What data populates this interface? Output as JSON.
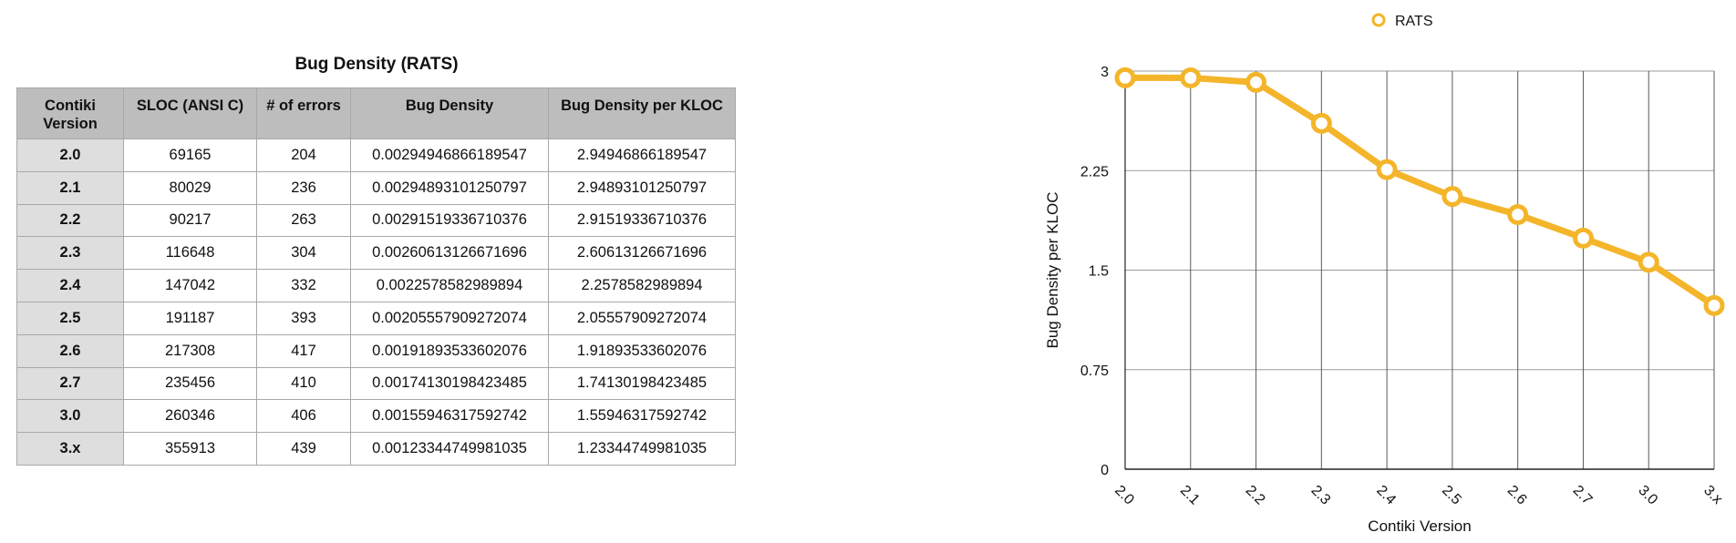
{
  "table": {
    "title": "Bug Density (RATS)",
    "columns": [
      "Contiki Version",
      "SLOC (ANSI C)",
      "# of errors",
      "Bug Density",
      "Bug Density per KLOC"
    ],
    "rows": [
      [
        "2.0",
        "69165",
        "204",
        "0.00294946866189547",
        "2.94946866189547"
      ],
      [
        "2.1",
        "80029",
        "236",
        "0.00294893101250797",
        "2.94893101250797"
      ],
      [
        "2.2",
        "90217",
        "263",
        "0.00291519336710376",
        "2.91519336710376"
      ],
      [
        "2.3",
        "116648",
        "304",
        "0.00260613126671696",
        "2.60613126671696"
      ],
      [
        "2.4",
        "147042",
        "332",
        "0.0022578582989894",
        "2.2578582989894"
      ],
      [
        "2.5",
        "191187",
        "393",
        "0.00205557909272074",
        "2.05557909272074"
      ],
      [
        "2.6",
        "217308",
        "417",
        "0.00191893533602076",
        "1.91893533602076"
      ],
      [
        "2.7",
        "235456",
        "410",
        "0.00174130198423485",
        "1.74130198423485"
      ],
      [
        "3.0",
        "260346",
        "406",
        "0.00155946317592742",
        "1.55946317592742"
      ],
      [
        "3.x",
        "355913",
        "439",
        "0.00123344749981035",
        "1.23344749981035"
      ]
    ]
  },
  "chart_data": {
    "type": "line",
    "categories": [
      "2.0",
      "2.1",
      "2.2",
      "2.3",
      "2.4",
      "2.5",
      "2.6",
      "2.7",
      "3.0",
      "3.x"
    ],
    "series": [
      {
        "name": "RATS",
        "color": "#f4b52a",
        "values": [
          2.94946866189547,
          2.94893101250797,
          2.91519336710376,
          2.60613126671696,
          2.2578582989894,
          2.05557909272074,
          1.91893533602076,
          1.74130198423485,
          1.55946317592742,
          1.23344749981035
        ]
      }
    ],
    "xlabel": "Contiki Version",
    "ylabel": "Bug Density per KLOC",
    "ylim": [
      0,
      3
    ],
    "yticks": [
      0,
      0.75,
      1.5,
      2.25,
      3
    ],
    "ytick_labels": [
      "0",
      "0.75",
      "1.5",
      "2.25",
      "3"
    ],
    "grid": true,
    "legend": "top-center"
  }
}
